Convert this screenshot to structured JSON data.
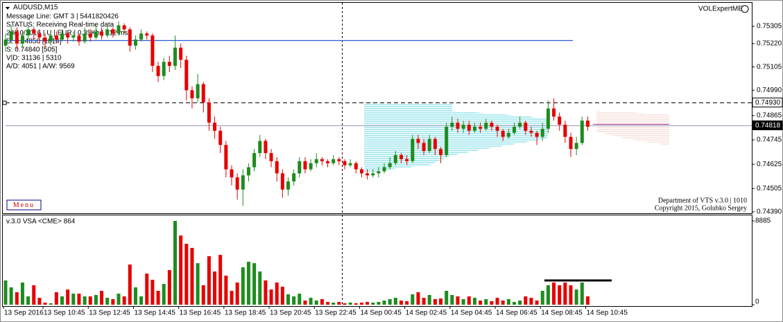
{
  "window": {
    "symbol": "AUDUSD,M15",
    "indicator": "VOLExpertME",
    "menu": "Menu",
    "info": [
      "Message Line: GMT 3 | 5441820426",
      "STATUS:  Receiving Real-time data",
      "20/10/2016 | U | EUR | 0.35Kb | 312 ms",
      "D: 0.74850  [1814]",
      "S: 0.74840  [505]",
      "V|D: 31136 | 5310",
      "A/D: 4051 | A/W: 9569"
    ],
    "footer": [
      "Department of VTS  v.3.0 | 1010",
      "Copyright 2015, Golubko Sergey"
    ]
  },
  "chart_data": [
    {
      "type": "candlestick",
      "up_color": "#1e8c1e",
      "down_color": "#e60000",
      "ylim": [
        0.74383,
        0.75418
      ],
      "yticks": [
        0.75305,
        {
          "value": 0.7522,
          "label": "0.75220"
        },
        0.75105,
        {
          "value": 0.7499,
          "label": "0.74990"
        },
        0.74865,
        0.74745,
        0.74625,
        0.74505,
        {
          "value": 0.7439,
          "label": "0.74390"
        }
      ],
      "hlines": [
        {
          "value": 0.75237,
          "color": "#2a5bd7"
        },
        {
          "value": 0.7493,
          "label": "0.74930",
          "color": "#000000",
          "style": "dashed"
        },
        {
          "value": 0.74818,
          "label": "0.74818",
          "color": "#a8a8c0"
        }
      ],
      "categories": [
        "13 Sep 2016",
        null,
        null,
        null,
        null,
        null,
        null,
        "13 Sep 10:45",
        null,
        null,
        null,
        null,
        null,
        null,
        null,
        "13 Sep 12:45",
        null,
        null,
        null,
        null,
        null,
        null,
        null,
        "13 Sep 14:45",
        null,
        null,
        null,
        null,
        null,
        null,
        null,
        "13 Sep 16:45",
        null,
        null,
        null,
        null,
        null,
        null,
        null,
        "13 Sep 18:45",
        null,
        null,
        null,
        null,
        null,
        null,
        null,
        "13 Sep 20:45",
        null,
        null,
        null,
        null,
        null,
        null,
        null,
        "13 Sep 22:45",
        null,
        null,
        null,
        null,
        null,
        null,
        null,
        "14 Sep 00:45",
        null,
        null,
        null,
        null,
        null,
        null,
        null,
        "14 Sep 02:45",
        null,
        null,
        null,
        null,
        null,
        null,
        null,
        "14 Sep 04:45",
        null,
        null,
        null,
        null,
        null,
        null,
        null,
        "14 Sep 06:45",
        null,
        null,
        null,
        null,
        null,
        null,
        null,
        "14 Sep 08:45",
        null,
        null,
        null,
        null,
        null,
        null,
        null,
        "14 Sep 10:45"
      ],
      "candles": [
        [
          0.7521,
          0.7527,
          0.7518,
          0.7524
        ],
        [
          0.7524,
          0.7531,
          0.7522,
          0.7528
        ],
        [
          0.7528,
          0.753,
          0.7519,
          0.7522
        ],
        [
          0.7522,
          0.7528,
          0.752,
          0.7526
        ],
        [
          0.7526,
          0.7531,
          0.7524,
          0.7529
        ],
        [
          0.7529,
          0.753,
          0.7524,
          0.7527
        ],
        [
          0.7527,
          0.7529,
          0.7522,
          0.7525
        ],
        [
          0.7525,
          0.7527,
          0.752,
          0.7523
        ],
        [
          0.7523,
          0.7528,
          0.7521,
          0.7526
        ],
        [
          0.7526,
          0.7528,
          0.7522,
          0.7524
        ],
        [
          0.7524,
          0.7529,
          0.7523,
          0.7527
        ],
        [
          0.7527,
          0.7528,
          0.7522,
          0.7525
        ],
        [
          0.7525,
          0.7528,
          0.7523,
          0.7526
        ],
        [
          0.7526,
          0.7527,
          0.7521,
          0.7523
        ],
        [
          0.7523,
          0.753,
          0.7522,
          0.7527
        ],
        [
          0.7527,
          0.7529,
          0.7523,
          0.7525
        ],
        [
          0.7525,
          0.7531,
          0.7524,
          0.7528
        ],
        [
          0.7528,
          0.753,
          0.7524,
          0.7526
        ],
        [
          0.7526,
          0.7531,
          0.7525,
          0.7529
        ],
        [
          0.7529,
          0.753,
          0.7525,
          0.7527
        ],
        [
          0.7527,
          0.7533,
          0.7526,
          0.7531
        ],
        [
          0.7531,
          0.7532,
          0.7527,
          0.7529
        ],
        [
          0.7529,
          0.753,
          0.7518,
          0.7521
        ],
        [
          0.7521,
          0.7526,
          0.7519,
          0.7524
        ],
        [
          0.7524,
          0.7529,
          0.7523,
          0.7527
        ],
        [
          0.7527,
          0.7528,
          0.7524,
          0.7526
        ],
        [
          0.7526,
          0.7527,
          0.7508,
          0.7511
        ],
        [
          0.7511,
          0.7513,
          0.7503,
          0.7506
        ],
        [
          0.7506,
          0.7515,
          0.7504,
          0.7513
        ],
        [
          0.7513,
          0.7516,
          0.7508,
          0.7511
        ],
        [
          0.7511,
          0.7526,
          0.7509,
          0.752
        ],
        [
          0.752,
          0.7522,
          0.751,
          0.7514
        ],
        [
          0.7514,
          0.7516,
          0.7494,
          0.7499
        ],
        [
          0.7499,
          0.7501,
          0.749,
          0.7495
        ],
        [
          0.7495,
          0.7507,
          0.7493,
          0.7502
        ],
        [
          0.7502,
          0.7503,
          0.7488,
          0.7493
        ],
        [
          0.7493,
          0.7495,
          0.7479,
          0.7483
        ],
        [
          0.7483,
          0.7486,
          0.7475,
          0.7479
        ],
        [
          0.7479,
          0.7481,
          0.7468,
          0.7472
        ],
        [
          0.7472,
          0.7474,
          0.7456,
          0.746
        ],
        [
          0.746,
          0.7462,
          0.7452,
          0.7456
        ],
        [
          0.7456,
          0.7458,
          0.7445,
          0.745
        ],
        [
          0.745,
          0.746,
          0.7442,
          0.7457
        ],
        [
          0.7457,
          0.7463,
          0.7454,
          0.7461
        ],
        [
          0.7461,
          0.747,
          0.7459,
          0.7468
        ],
        [
          0.7468,
          0.7477,
          0.7466,
          0.7474
        ],
        [
          0.7474,
          0.7475,
          0.7465,
          0.7468
        ],
        [
          0.7468,
          0.747,
          0.7461,
          0.7464
        ],
        [
          0.7464,
          0.7466,
          0.7454,
          0.7458
        ],
        [
          0.7458,
          0.746,
          0.7446,
          0.745
        ],
        [
          0.745,
          0.7456,
          0.7447,
          0.7454
        ],
        [
          0.7454,
          0.746,
          0.7452,
          0.7458
        ],
        [
          0.7458,
          0.7466,
          0.7456,
          0.7464
        ],
        [
          0.7464,
          0.7466,
          0.7458,
          0.746
        ],
        [
          0.746,
          0.7465,
          0.7459,
          0.7463
        ],
        [
          0.7463,
          0.7468,
          0.7461,
          0.7465
        ],
        [
          0.7465,
          0.7466,
          0.7462,
          0.7464
        ],
        [
          0.7464,
          0.7465,
          0.7461,
          0.7463
        ],
        [
          0.7463,
          0.7467,
          0.7462,
          0.7465
        ],
        [
          0.7465,
          0.7466,
          0.7462,
          0.7464
        ],
        [
          0.7464,
          0.7465,
          0.746,
          0.7462
        ],
        [
          0.7462,
          0.7465,
          0.7461,
          0.7463
        ],
        [
          0.7463,
          0.7464,
          0.7458,
          0.746
        ],
        [
          0.746,
          0.7461,
          0.7456,
          0.7458
        ],
        [
          0.7458,
          0.746,
          0.7455,
          0.7457
        ],
        [
          0.7457,
          0.746,
          0.7456,
          0.7458
        ],
        [
          0.7458,
          0.7461,
          0.7456,
          0.7459
        ],
        [
          0.7459,
          0.7463,
          0.7458,
          0.7461
        ],
        [
          0.7461,
          0.7466,
          0.746,
          0.7463
        ],
        [
          0.7463,
          0.7469,
          0.7462,
          0.7467
        ],
        [
          0.7467,
          0.7468,
          0.7463,
          0.7465
        ],
        [
          0.7465,
          0.7467,
          0.7462,
          0.7464
        ],
        [
          0.7464,
          0.7477,
          0.7463,
          0.7475
        ],
        [
          0.7475,
          0.7477,
          0.747,
          0.7473
        ],
        [
          0.7473,
          0.7475,
          0.7467,
          0.7469
        ],
        [
          0.7469,
          0.7477,
          0.7468,
          0.7475
        ],
        [
          0.7475,
          0.7476,
          0.7467,
          0.747
        ],
        [
          0.747,
          0.7471,
          0.7463,
          0.7467
        ],
        [
          0.7467,
          0.7483,
          0.7466,
          0.7481
        ],
        [
          0.7481,
          0.7486,
          0.7479,
          0.7483
        ],
        [
          0.7483,
          0.7485,
          0.7478,
          0.748
        ],
        [
          0.748,
          0.7484,
          0.7478,
          0.7482
        ],
        [
          0.7482,
          0.7484,
          0.7477,
          0.7479
        ],
        [
          0.7479,
          0.7483,
          0.7478,
          0.7481
        ],
        [
          0.7481,
          0.7483,
          0.7478,
          0.748
        ],
        [
          0.748,
          0.7485,
          0.7479,
          0.7483
        ],
        [
          0.7483,
          0.7484,
          0.7479,
          0.7481
        ],
        [
          0.7481,
          0.7482,
          0.7476,
          0.7479
        ],
        [
          0.7479,
          0.748,
          0.7474,
          0.7476
        ],
        [
          0.7476,
          0.748,
          0.7475,
          0.7478
        ],
        [
          0.7478,
          0.7483,
          0.7477,
          0.7481
        ],
        [
          0.7481,
          0.7486,
          0.748,
          0.7483
        ],
        [
          0.7483,
          0.7484,
          0.7477,
          0.7479
        ],
        [
          0.7479,
          0.7481,
          0.7476,
          0.7478
        ],
        [
          0.7478,
          0.7479,
          0.7472,
          0.7476
        ],
        [
          0.7476,
          0.7483,
          0.7474,
          0.748
        ],
        [
          0.748,
          0.7494,
          0.7478,
          0.749
        ],
        [
          0.749,
          0.7495,
          0.7484,
          0.7486
        ],
        [
          0.7486,
          0.7488,
          0.7479,
          0.7482
        ],
        [
          0.7482,
          0.7484,
          0.7473,
          0.7476
        ],
        [
          0.7476,
          0.7478,
          0.7466,
          0.747
        ],
        [
          0.747,
          0.7476,
          0.7467,
          0.7473
        ],
        [
          0.7473,
          0.7486,
          0.7472,
          0.7484
        ],
        [
          0.7484,
          0.7486,
          0.7479,
          0.7481
        ]
      ]
    },
    {
      "type": "bar",
      "title": "v.3.0 VSA <CME> 864",
      "ylim": [
        0,
        8885
      ],
      "yticks": [
        8885,
        0
      ],
      "values": [
        2570,
        1840,
        1320,
        2350,
        880,
        2060,
        730,
        220,
        150,
        1320,
        880,
        1610,
        1170,
        1170,
        880,
        880,
        1030,
        1470,
        730,
        590,
        1170,
        880,
        4260,
        1840,
        880,
        3300,
        2640,
        1470,
        2200,
        3670,
        8885,
        7340,
        6460,
        6020,
        4400,
        2060,
        5140,
        3520,
        5280,
        3080,
        1470,
        2350,
        3960,
        4550,
        4400,
        3520,
        2570,
        1610,
        2350,
        1910,
        1100,
        880,
        1170,
        440,
        730,
        440,
        590,
        290,
        220,
        290,
        150,
        220,
        150,
        220,
        290,
        220,
        290,
        440,
        590,
        730,
        440,
        370,
        1100,
        1320,
        730,
        1030,
        590,
        660,
        1470,
        1030,
        880,
        590,
        880,
        730,
        440,
        590,
        370,
        730,
        440,
        590,
        290,
        440,
        880,
        730,
        440,
        1470,
        2060,
        2350,
        2060,
        2350,
        2060,
        1610,
        2350,
        880
      ]
    }
  ]
}
